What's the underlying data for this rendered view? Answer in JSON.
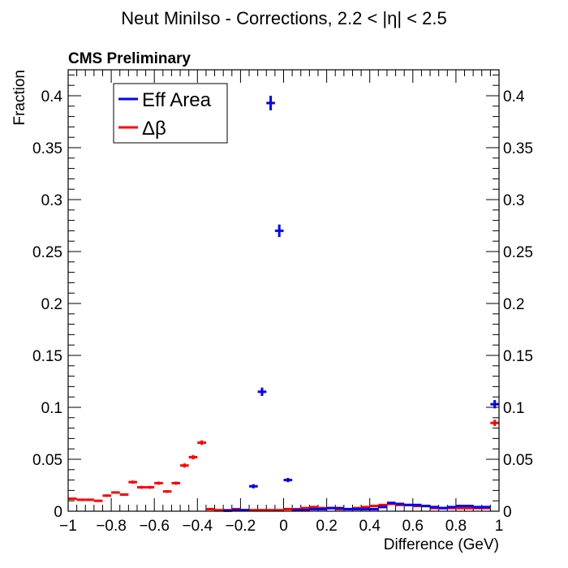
{
  "chart_data": {
    "type": "scatter",
    "title": "Neut MiniIso - Corrections, 2.2 < |η| < 2.5",
    "subtitle": "CMS Preliminary",
    "xlabel": "Difference (GeV)",
    "ylabel": "Fraction",
    "xlim": [
      -1,
      1
    ],
    "ylim": [
      0,
      0.425
    ],
    "x_ticks": [
      "−1",
      "−0.8",
      "−0.6",
      "−0.4",
      "−0.2",
      "0",
      "0.2",
      "0.4",
      "0.6",
      "0.8",
      "1"
    ],
    "y_ticks": [
      "0",
      "0.05",
      "0.1",
      "0.15",
      "0.2",
      "0.25",
      "0.3",
      "0.35",
      "0.4"
    ],
    "bin_width": 0.04,
    "legend_position": "top-left",
    "series": [
      {
        "name": "Eff Area",
        "color": "#0000ff",
        "x": [
          -0.26,
          -0.22,
          -0.18,
          -0.14,
          -0.1,
          -0.06,
          -0.02,
          0.02,
          0.06,
          0.1,
          0.14,
          0.18,
          0.22,
          0.26,
          0.3,
          0.34,
          0.38,
          0.42,
          0.46,
          0.5,
          0.54,
          0.58,
          0.62,
          0.66,
          0.7,
          0.74,
          0.78,
          0.82,
          0.86,
          0.9,
          0.94,
          0.98
        ],
        "y": [
          0.0005,
          0.001,
          0.001,
          0.024,
          0.115,
          0.393,
          0.27,
          0.03,
          0.001,
          0.001,
          0.002,
          0.002,
          0.003,
          0.003,
          0.002,
          0.002,
          0.002,
          0.002,
          0.004,
          0.008,
          0.007,
          0.006,
          0.006,
          0.005,
          0.004,
          0.003,
          0.004,
          0.005,
          0.005,
          0.004,
          0.004,
          0.103
        ],
        "xerr": 0.02,
        "yerr": [
          0.0005,
          0.0005,
          0.0005,
          0.002,
          0.004,
          0.007,
          0.006,
          0.002,
          0.0005,
          0.0005,
          0.0005,
          0.0005,
          0.0005,
          0.0005,
          0.0005,
          0.0005,
          0.0005,
          0.0005,
          0.0008,
          0.001,
          0.001,
          0.001,
          0.001,
          0.001,
          0.0008,
          0.0008,
          0.0008,
          0.001,
          0.001,
          0.0008,
          0.0008,
          0.004
        ]
      },
      {
        "name": "Δβ",
        "color": "#ff0000",
        "x": [
          -0.98,
          -0.94,
          -0.9,
          -0.86,
          -0.82,
          -0.78,
          -0.74,
          -0.7,
          -0.66,
          -0.62,
          -0.58,
          -0.54,
          -0.5,
          -0.46,
          -0.42,
          -0.38,
          -0.34,
          -0.3,
          -0.26,
          -0.22,
          -0.18,
          -0.14,
          -0.1,
          -0.06,
          -0.02,
          0.02,
          0.06,
          0.1,
          0.14,
          0.18,
          0.22,
          0.26,
          0.3,
          0.34,
          0.38,
          0.42,
          0.46,
          0.5,
          0.54,
          0.58,
          0.62,
          0.66,
          0.7,
          0.74,
          0.78,
          0.82,
          0.86,
          0.9,
          0.94,
          0.98
        ],
        "y": [
          0.012,
          0.011,
          0.011,
          0.01,
          0.015,
          0.018,
          0.016,
          0.028,
          0.023,
          0.023,
          0.027,
          0.019,
          0.027,
          0.044,
          0.052,
          0.066,
          0.002,
          0.001,
          0.001,
          0.002,
          0.001,
          0.001,
          0.001,
          0.001,
          0.001,
          0.002,
          0.002,
          0.003,
          0.004,
          0.003,
          0.003,
          0.002,
          0.002,
          0.003,
          0.004,
          0.005,
          0.006,
          0.007,
          0.006,
          0.006,
          0.005,
          0.005,
          0.003,
          0.003,
          0.003,
          0.003,
          0.003,
          0.003,
          0.003,
          0.085
        ],
        "xerr": 0.02,
        "yerr": [
          0.001,
          0.001,
          0.001,
          0.001,
          0.0012,
          0.0012,
          0.0012,
          0.0015,
          0.0014,
          0.0014,
          0.0015,
          0.0013,
          0.0015,
          0.002,
          0.002,
          0.0022,
          0.0004,
          0.0003,
          0.0003,
          0.0004,
          0.0003,
          0.0003,
          0.0003,
          0.0003,
          0.0003,
          0.0004,
          0.0004,
          0.0005,
          0.0006,
          0.0005,
          0.0005,
          0.0004,
          0.0004,
          0.0005,
          0.0006,
          0.0007,
          0.0008,
          0.0008,
          0.0008,
          0.0008,
          0.0007,
          0.0007,
          0.0005,
          0.0005,
          0.0005,
          0.0005,
          0.0005,
          0.0005,
          0.0005,
          0.003
        ]
      }
    ]
  }
}
